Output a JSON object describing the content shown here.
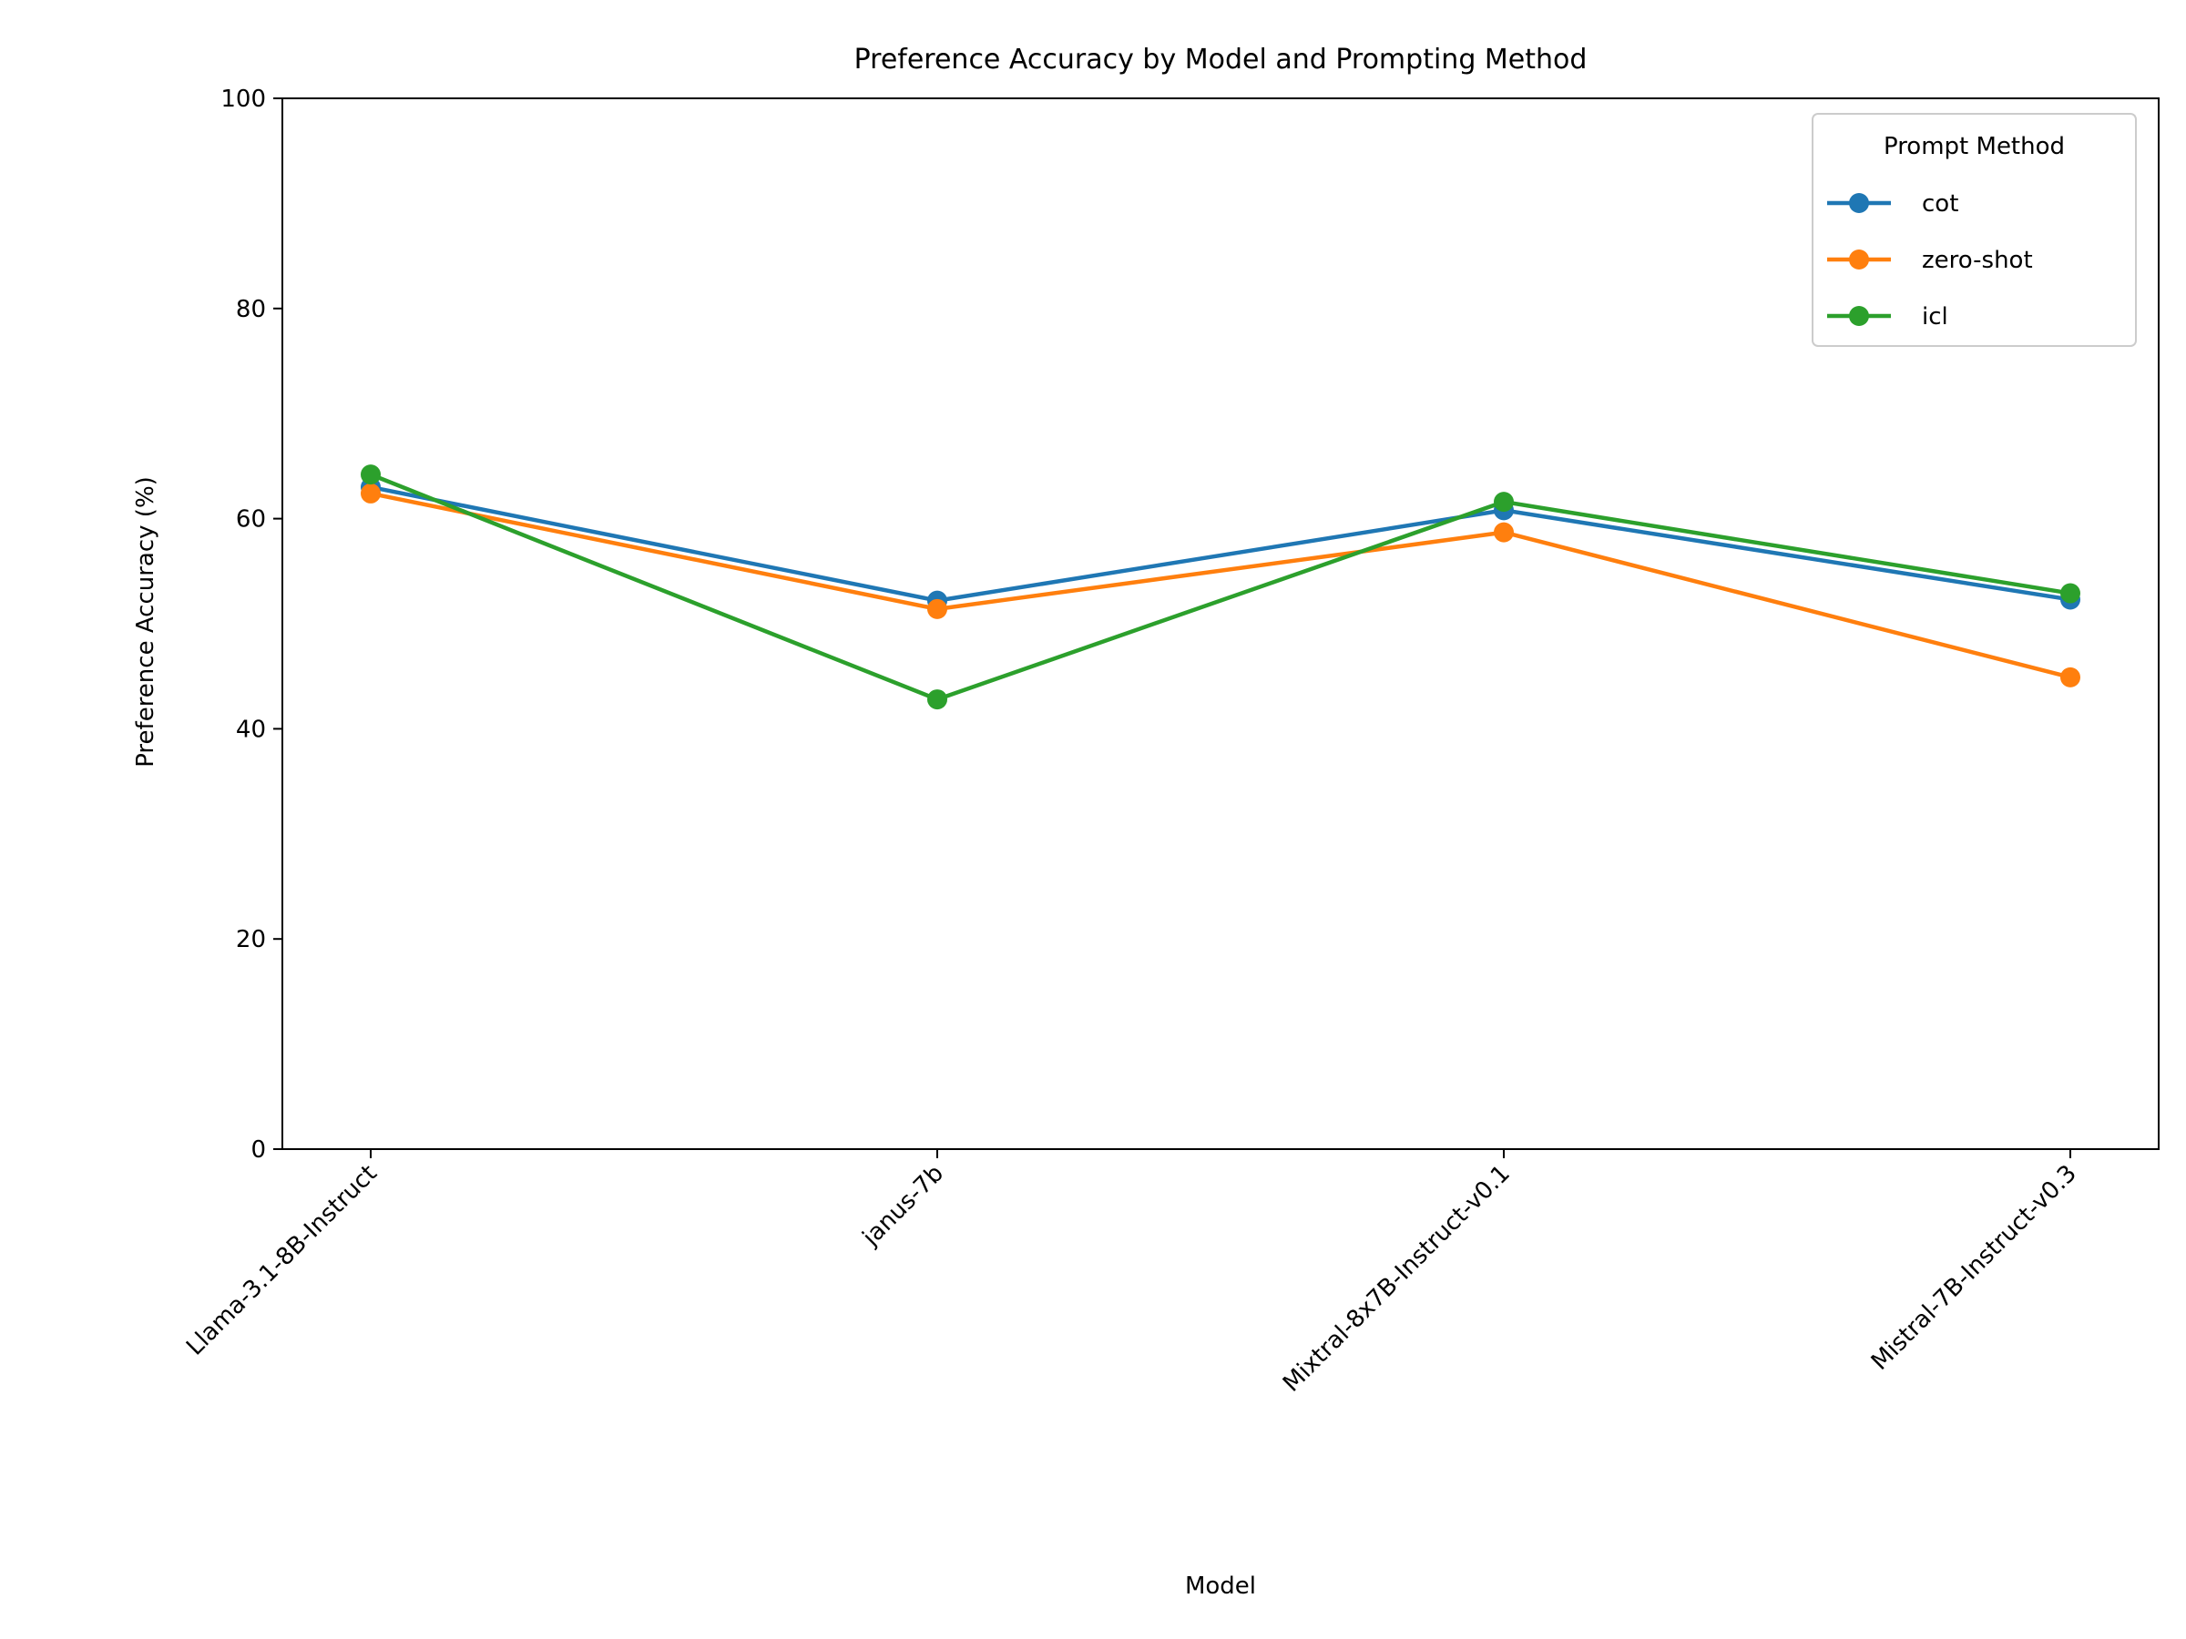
{
  "chart_data": {
    "type": "line",
    "title": "Preference Accuracy by Model and Prompting Method",
    "xlabel": "Model",
    "ylabel": "Preference Accuracy (%)",
    "categories": [
      "Llama-3.1-8B-Instruct",
      "janus-7b",
      "Mixtral-8x7B-Instruct-v0.1",
      "Mistral-7B-Instruct-v0.3"
    ],
    "ylim": [
      0,
      100
    ],
    "yticks": [
      0,
      20,
      40,
      60,
      80,
      100
    ],
    "grid": false,
    "legend": {
      "title": "Prompt Method",
      "placement": "top-right"
    },
    "series": [
      {
        "name": "cot",
        "color": "#1f77b4",
        "values": [
          63.0,
          52.2,
          60.8,
          52.3
        ]
      },
      {
        "name": "zero-shot",
        "color": "#ff7f0e",
        "values": [
          62.4,
          51.4,
          58.7,
          44.9
        ]
      },
      {
        "name": "icl",
        "color": "#2ca02c",
        "values": [
          64.2,
          42.8,
          61.6,
          52.9
        ]
      }
    ]
  }
}
